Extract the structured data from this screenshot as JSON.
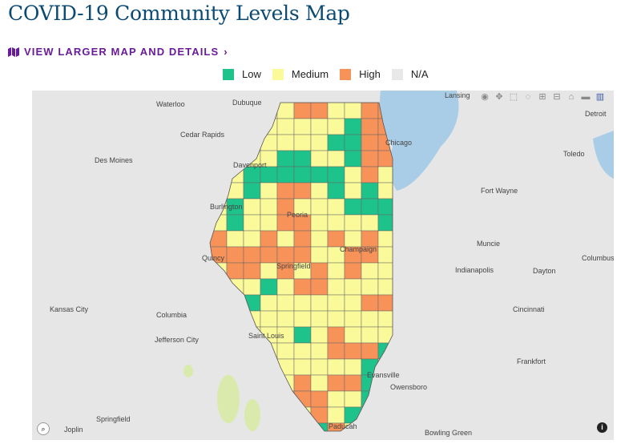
{
  "title": "COVID-19 Community Levels Map",
  "link": {
    "label": "VIEW LARGER MAP AND DETAILS",
    "chevron": "›",
    "icon": "map-icon"
  },
  "legend": [
    {
      "label": "Low",
      "color": "#1ec28b"
    },
    {
      "label": "Medium",
      "color": "#fafa9a"
    },
    {
      "label": "High",
      "color": "#f79259"
    },
    {
      "label": "N/A",
      "color": "#e8e8e8"
    }
  ],
  "county_levels": [
    "MMMMMHHMMHH",
    "MMMMMMMMLHH",
    "MMMMMMMLLHH",
    "MMMMLLMMLHH",
    "MMLLLLLLMHM",
    "MMLMHHMLMLM",
    "MLMMHMMMLLL",
    "MLMMHHMMMML",
    "HMMHMHMHMHM",
    "HHHHHHMMHHM",
    "MHHMHMHMHMM",
    "MMMLMHHMMMM",
    "MMLMMMMMMHH",
    "MMMMMMMMMMM",
    "MMMMMLMHMMM",
    "MMMMMMMHHHL",
    "MMMMMMMMMLM",
    "MMMMMHMHHLM",
    "MMMMMHHMMLM",
    "MMMMMMHMLMM",
    "MMMMMLLHMMM"
  ],
  "cities": [
    "Waterloo",
    "Dubuque",
    "Cedar Rapids",
    "Des Moines",
    "Davenport",
    "Burlington",
    "Peoria",
    "Quincy",
    "Springfield",
    "Champaign",
    "Kansas City",
    "Columbia",
    "Jefferson City",
    "Saint Louis",
    "Chicago",
    "Fort Wayne",
    "Toledo",
    "Detroit",
    "Muncie",
    "Indianapolis",
    "Dayton",
    "Columbus",
    "Cincinnati",
    "Frankfort",
    "Evansville",
    "Owensboro",
    "Joplin",
    "Springfield",
    "Paducah",
    "Bowling Green",
    "Lansing"
  ],
  "modebar": [
    "camera-icon",
    "pan-icon",
    "box-select-icon",
    "lasso-icon",
    "zoom-in-icon",
    "zoom-out-icon",
    "home-icon",
    "tag-icon",
    "plotly-logo-icon"
  ]
}
